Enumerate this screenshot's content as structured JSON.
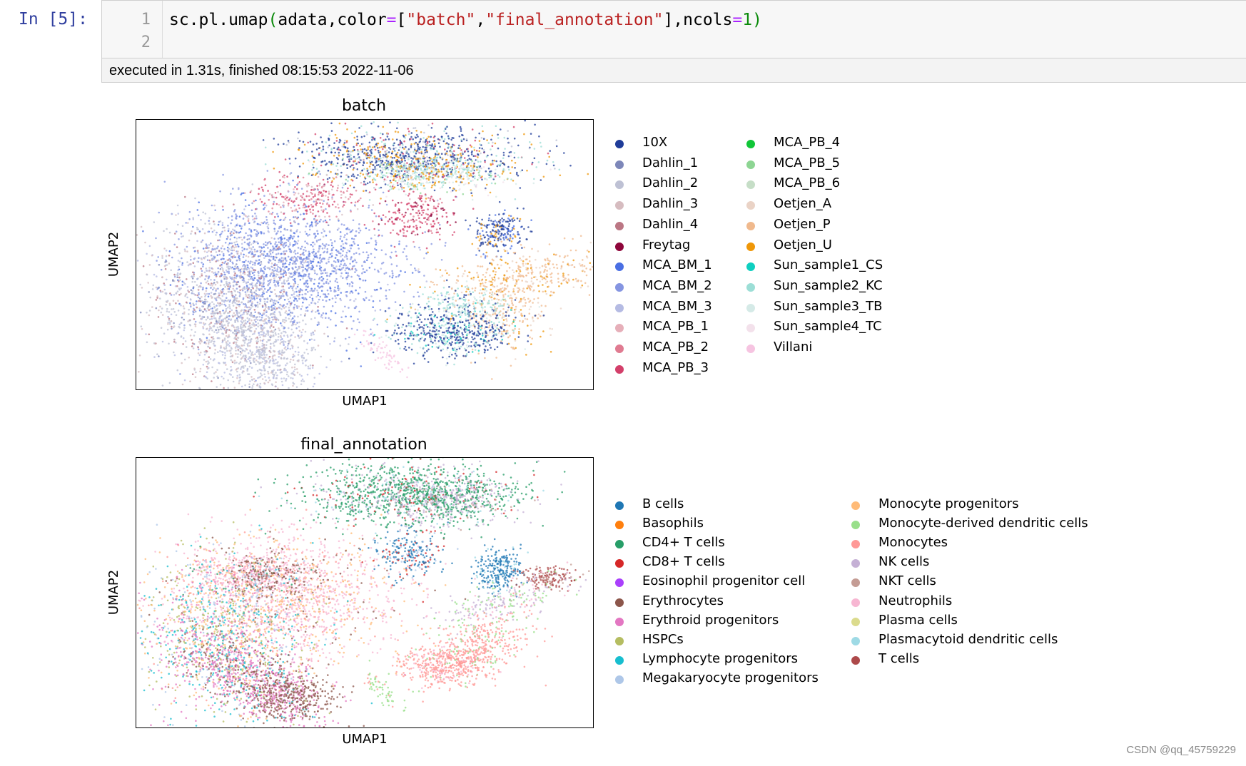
{
  "cell": {
    "prompt": "In [5]:",
    "line_numbers": [
      "1",
      "2"
    ],
    "code_tokens": [
      {
        "text": "sc.pl.umap",
        "cls": ""
      },
      {
        "text": "(",
        "cls": "tok-paren"
      },
      {
        "text": "adata,color",
        "cls": ""
      },
      {
        "text": "=",
        "cls": "tok-op"
      },
      {
        "text": "[",
        "cls": ""
      },
      {
        "text": "\"batch\"",
        "cls": "tok-str"
      },
      {
        "text": ",",
        "cls": ""
      },
      {
        "text": "\"final_annotation\"",
        "cls": "tok-str"
      },
      {
        "text": "],ncols",
        "cls": ""
      },
      {
        "text": "=",
        "cls": "tok-op"
      },
      {
        "text": "1",
        "cls": "tok-num"
      },
      {
        "text": ")",
        "cls": "tok-paren"
      }
    ],
    "exec_info": "executed in 1.31s, finished 08:15:53 2022-11-06"
  },
  "plots": [
    {
      "title": "batch",
      "xlabel": "UMAP1",
      "ylabel": "UMAP2",
      "legend": [
        {
          "label": "10X",
          "color": "#1f3c99"
        },
        {
          "label": "Dahlin_1",
          "color": "#7d87b9"
        },
        {
          "label": "Dahlin_2",
          "color": "#bec1d4"
        },
        {
          "label": "Dahlin_3",
          "color": "#d6bcc0"
        },
        {
          "label": "Dahlin_4",
          "color": "#bb7784"
        },
        {
          "label": "Freytag",
          "color": "#8e063b"
        },
        {
          "label": "MCA_BM_1",
          "color": "#4a6fe3"
        },
        {
          "label": "MCA_BM_2",
          "color": "#8595e1"
        },
        {
          "label": "MCA_BM_3",
          "color": "#b5bbe3"
        },
        {
          "label": "MCA_PB_1",
          "color": "#e6afb9"
        },
        {
          "label": "MCA_PB_2",
          "color": "#e07b91"
        },
        {
          "label": "MCA_PB_3",
          "color": "#d33f6a"
        },
        {
          "label": "MCA_PB_4",
          "color": "#11c638"
        },
        {
          "label": "MCA_PB_5",
          "color": "#8dd593"
        },
        {
          "label": "MCA_PB_6",
          "color": "#c6dec7"
        },
        {
          "label": "Oetjen_A",
          "color": "#ead3c6"
        },
        {
          "label": "Oetjen_P",
          "color": "#f0b98d"
        },
        {
          "label": "Oetjen_U",
          "color": "#ef9708"
        },
        {
          "label": "Sun_sample1_CS",
          "color": "#0fcfc0"
        },
        {
          "label": "Sun_sample2_KC",
          "color": "#9cded6"
        },
        {
          "label": "Sun_sample3_TB",
          "color": "#d5eae7"
        },
        {
          "label": "Sun_sample4_TC",
          "color": "#f3e1eb"
        },
        {
          "label": "Villani",
          "color": "#f6c4e1"
        }
      ]
    },
    {
      "title": "final_annotation",
      "xlabel": "UMAP1",
      "ylabel": "UMAP2",
      "legend": [
        {
          "label": "B cells",
          "color": "#1f77b4"
        },
        {
          "label": "Basophils",
          "color": "#ff7f0e"
        },
        {
          "label": "CD4+ T cells",
          "color": "#279e68"
        },
        {
          "label": "CD8+ T cells",
          "color": "#d62728"
        },
        {
          "label": "Eosinophil progenitor cell",
          "color": "#aa40fc"
        },
        {
          "label": "Erythrocytes",
          "color": "#8c564b"
        },
        {
          "label": "Erythroid progenitors",
          "color": "#e377c2"
        },
        {
          "label": "HSPCs",
          "color": "#b5bd61"
        },
        {
          "label": "Lymphocyte progenitors",
          "color": "#17becf"
        },
        {
          "label": "Megakaryocyte progenitors",
          "color": "#aec7e8"
        },
        {
          "label": "Monocyte progenitors",
          "color": "#ffbb78"
        },
        {
          "label": "Monocyte-derived dendritic cells",
          "color": "#98df8a"
        },
        {
          "label": "Monocytes",
          "color": "#ff9896"
        },
        {
          "label": "NK cells",
          "color": "#c5b0d5"
        },
        {
          "label": "NKT cells",
          "color": "#c49c94"
        },
        {
          "label": "Neutrophils",
          "color": "#f7b6d2"
        },
        {
          "label": "Plasma cells",
          "color": "#dbdb8d"
        },
        {
          "label": "Plasmacytoid dendritic cells",
          "color": "#9edae5"
        },
        {
          "label": "T cells",
          "color": "#ad494a"
        }
      ]
    }
  ],
  "watermark": "CSDN @qq_45759229"
}
